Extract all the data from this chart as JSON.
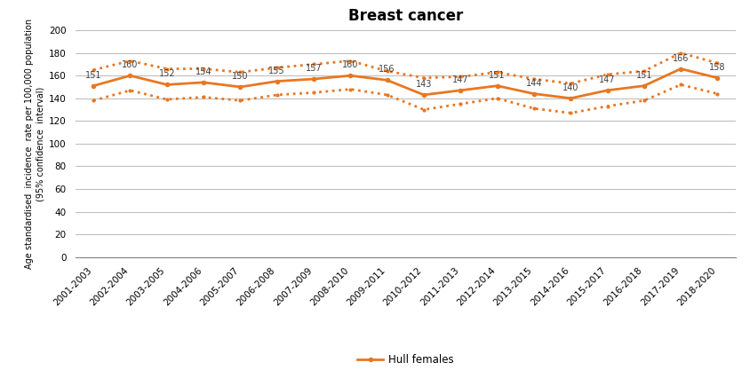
{
  "title": "Breast cancer",
  "ylabel": "Age standardised  incidence  rate per 100,000 population\n(95% confidence  interval)",
  "categories": [
    "2001-2003",
    "2002-2004",
    "2003-2005",
    "2004-2006",
    "2005-2007",
    "2006-2008",
    "2007-2009",
    "2008-2010",
    "2009-2011",
    "2010-2012",
    "2011-2013",
    "2012-2014",
    "2013-2015",
    "2014-2016",
    "2015-2017",
    "2016-2018",
    "2017-2019",
    "2018-2020"
  ],
  "values": [
    151,
    160,
    152,
    154,
    150,
    155,
    157,
    160,
    156,
    143,
    147,
    151,
    144,
    140,
    147,
    151,
    166,
    158
  ],
  "upper_ci": [
    165,
    173,
    166,
    166,
    163,
    167,
    170,
    173,
    164,
    158,
    159,
    163,
    157,
    153,
    161,
    164,
    180,
    171
  ],
  "lower_ci": [
    138,
    147,
    139,
    141,
    138,
    143,
    145,
    148,
    143,
    130,
    135,
    140,
    131,
    127,
    133,
    138,
    152,
    144
  ],
  "line_color": "#E87722",
  "ci_color": "#E87722",
  "legend_label": "Hull females",
  "ylim": [
    0,
    200
  ],
  "yticks": [
    0,
    20,
    40,
    60,
    80,
    100,
    120,
    140,
    160,
    180,
    200
  ],
  "background_color": "#ffffff",
  "grid_color": "#bfbfbf",
  "title_fontsize": 12,
  "tick_fontsize": 7.5,
  "label_fontsize": 7,
  "value_label_fontsize": 7,
  "value_label_color": "#404040"
}
